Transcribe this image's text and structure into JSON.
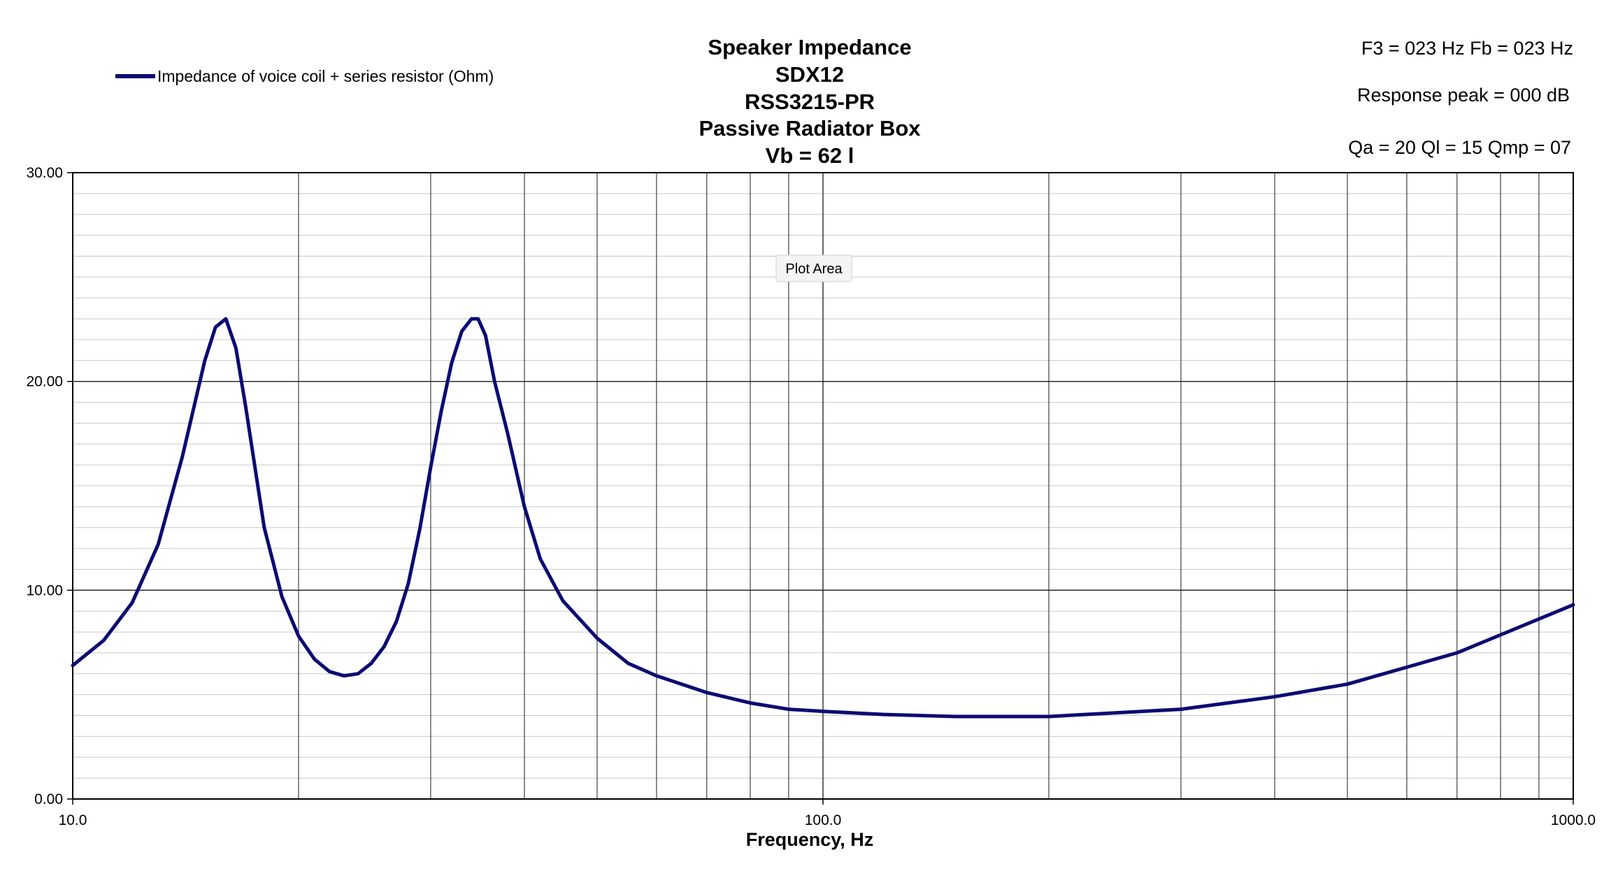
{
  "chart_data": {
    "type": "line",
    "title_lines": [
      "Speaker Impedance",
      "SDX12",
      "RSS3215-PR",
      "Passive Radiator Box",
      "Vb = 62 l"
    ],
    "info_lines": [
      "F3 = 023 Hz  Fb = 023 Hz",
      "Response peak = 000 dB",
      "Qa = 20  Ql = 15  Qmp = 07"
    ],
    "xlabel": "Frequency, Hz",
    "ylabel": "",
    "x_scale": "log",
    "xlim": [
      10,
      1000
    ],
    "ylim": [
      0,
      30
    ],
    "x_tick_labels": [
      "10.0",
      "100.0",
      "1000.0"
    ],
    "y_tick_labels": [
      "0.00",
      "10.00",
      "20.00",
      "30.00"
    ],
    "grid": true,
    "legend_position": "top-left",
    "series": [
      {
        "name": "Impedance of voice coil + series resistor (Ohm)",
        "color": "#0b0b73",
        "x": [
          10,
          11,
          12,
          13,
          14,
          15,
          15.5,
          16,
          16.5,
          17,
          18,
          19,
          20,
          21,
          22,
          23,
          24,
          25,
          26,
          27,
          28,
          29,
          30,
          31,
          32,
          33,
          34,
          34.7,
          35.5,
          36.5,
          38,
          40,
          42,
          45,
          50,
          55,
          60,
          70,
          80,
          90,
          100,
          120,
          150,
          200,
          300,
          400,
          500,
          700,
          1000
        ],
        "y": [
          6.4,
          7.6,
          9.4,
          12.2,
          16.4,
          21.0,
          22.6,
          23.0,
          21.6,
          18.8,
          13.0,
          9.7,
          7.8,
          6.7,
          6.1,
          5.9,
          6.0,
          6.5,
          7.3,
          8.5,
          10.3,
          12.9,
          15.9,
          18.6,
          20.9,
          22.4,
          23.0,
          23.0,
          22.2,
          20.0,
          17.5,
          14.0,
          11.5,
          9.5,
          7.7,
          6.5,
          5.9,
          5.1,
          4.6,
          4.3,
          4.2,
          4.05,
          3.95,
          3.95,
          4.3,
          4.9,
          5.5,
          7.0,
          9.3
        ]
      }
    ]
  },
  "ui": {
    "tooltip": "Plot Area"
  }
}
